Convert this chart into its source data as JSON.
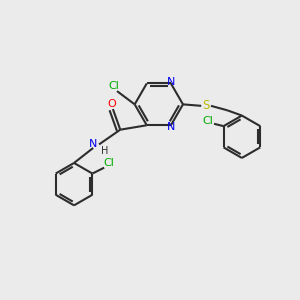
{
  "background_color": "#ebebeb",
  "bond_color": "#2d2d2d",
  "atom_colors": {
    "N": "#0000ee",
    "O": "#ff0000",
    "S": "#bbbb00",
    "Cl": "#00aa00",
    "H": "#2d2d2d",
    "C": "#2d2d2d"
  },
  "figsize": [
    3.0,
    3.0
  ],
  "dpi": 100
}
